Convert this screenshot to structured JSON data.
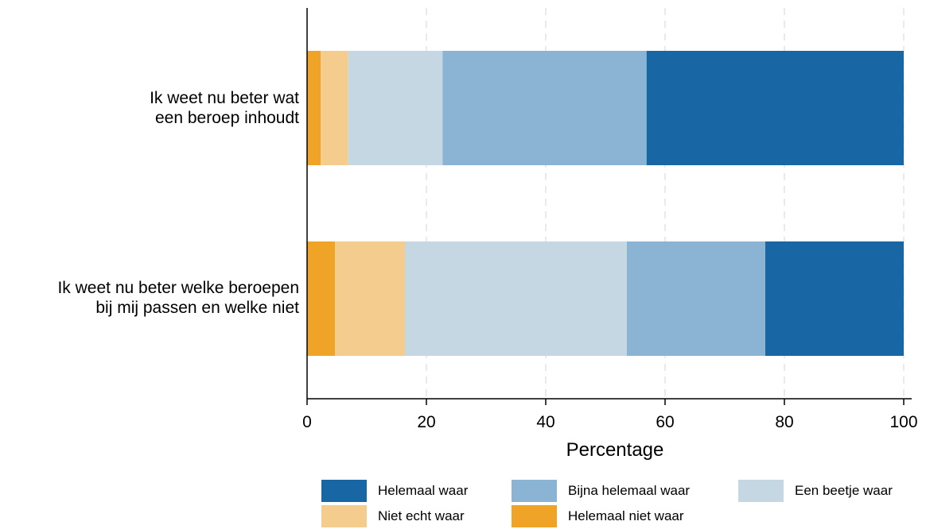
{
  "chart_data": {
    "type": "bar",
    "orientation": "horizontal",
    "stacked": true,
    "categories": [
      [
        "Ik weet nu beter wat",
        "een beroep inhoudt"
      ],
      [
        "Ik weet nu beter welke beroepen",
        "bij mij passen en welke niet"
      ]
    ],
    "series": [
      {
        "name": "Helemaal niet waar",
        "color": "#F0A427",
        "values": [
          2.3,
          4.7
        ]
      },
      {
        "name": "Niet echt waar",
        "color": "#F3CC8E",
        "values": [
          4.6,
          11.7
        ]
      },
      {
        "name": "Een beetje waar",
        "color": "#C6D7E4",
        "values": [
          15.8,
          37.2
        ]
      },
      {
        "name": "Bijna helemaal waar",
        "color": "#8BB3D3",
        "values": [
          34.2,
          23.2
        ]
      },
      {
        "name": "Helemaal waar",
        "color": "#1866A3",
        "values": [
          43.1,
          23.2
        ]
      }
    ],
    "xlabel": "Percentage",
    "ylabel": "",
    "xlim": [
      0,
      100
    ],
    "xticks": [
      "0",
      "20",
      "40",
      "60",
      "80",
      "100"
    ],
    "grid": "vertical dashed",
    "legend": {
      "position": "bottom",
      "order": [
        "Helemaal waar",
        "Bijna helemaal waar",
        "Een beetje waar",
        "Niet echt waar",
        "Helemaal niet waar"
      ]
    }
  }
}
